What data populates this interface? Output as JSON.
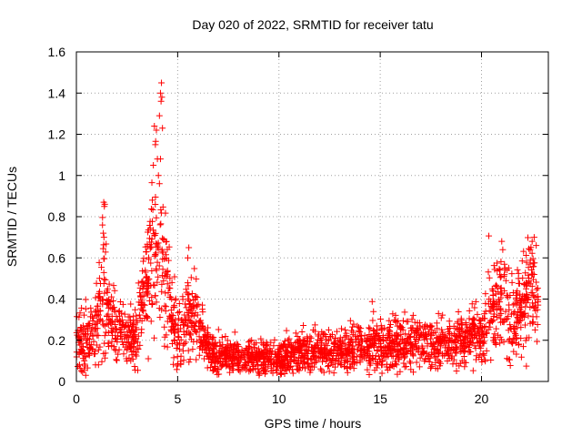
{
  "chart_data": {
    "type": "scatter",
    "title": "Day 020 of 2022, SRMTID for receiver tatu",
    "xlabel": "GPS time / hours",
    "ylabel": "SRMTID / TECUs",
    "xlim": [
      0,
      23.3
    ],
    "ylim": [
      0,
      1.6
    ],
    "xticks": [
      0,
      5,
      10,
      15,
      20
    ],
    "yticks": [
      0,
      0.2,
      0.4,
      0.6,
      0.8,
      1,
      1.2,
      1.4,
      1.6
    ],
    "ytick_labels": [
      "0",
      "0.2",
      "0.4",
      "0.6",
      "0.8",
      "1",
      "1.2",
      "1.4",
      "1.6"
    ],
    "grid": true,
    "marker": "+",
    "color": "#ff0000",
    "series": [
      {
        "name": "SRMTID",
        "envelope": [
          [
            0.0,
            0.18,
            0.08
          ],
          [
            0.5,
            0.18,
            0.08
          ],
          [
            1.0,
            0.28,
            0.1
          ],
          [
            1.3,
            0.45,
            0.15
          ],
          [
            1.6,
            0.3,
            0.1
          ],
          [
            2.0,
            0.25,
            0.08
          ],
          [
            2.5,
            0.22,
            0.06
          ],
          [
            3.0,
            0.22,
            0.08
          ],
          [
            3.3,
            0.45,
            0.12
          ],
          [
            3.7,
            0.6,
            0.15
          ],
          [
            4.0,
            0.7,
            0.2
          ],
          [
            4.3,
            0.6,
            0.2
          ],
          [
            4.6,
            0.4,
            0.12
          ],
          [
            5.0,
            0.2,
            0.08
          ],
          [
            5.5,
            0.32,
            0.1
          ],
          [
            6.0,
            0.3,
            0.1
          ],
          [
            6.3,
            0.18,
            0.06
          ],
          [
            7.0,
            0.12,
            0.04
          ],
          [
            8.0,
            0.11,
            0.04
          ],
          [
            9.0,
            0.11,
            0.04
          ],
          [
            10.0,
            0.1,
            0.04
          ],
          [
            11.0,
            0.14,
            0.05
          ],
          [
            12.0,
            0.15,
            0.05
          ],
          [
            13.0,
            0.15,
            0.05
          ],
          [
            14.0,
            0.17,
            0.05
          ],
          [
            15.0,
            0.18,
            0.06
          ],
          [
            16.0,
            0.18,
            0.06
          ],
          [
            17.0,
            0.19,
            0.06
          ],
          [
            18.0,
            0.18,
            0.06
          ],
          [
            19.0,
            0.2,
            0.06
          ],
          [
            20.0,
            0.22,
            0.07
          ],
          [
            20.5,
            0.35,
            0.1
          ],
          [
            21.0,
            0.4,
            0.12
          ],
          [
            21.5,
            0.3,
            0.1
          ],
          [
            22.0,
            0.38,
            0.12
          ],
          [
            22.5,
            0.45,
            0.12
          ],
          [
            22.8,
            0.4,
            0.1
          ]
        ],
        "extremes": [
          [
            1.35,
            0.87
          ],
          [
            1.4,
            0.86
          ],
          [
            1.38,
            0.85
          ],
          [
            1.33,
            0.72
          ],
          [
            1.36,
            0.7
          ],
          [
            4.2,
            1.45
          ],
          [
            4.15,
            1.4
          ],
          [
            4.22,
            1.38
          ],
          [
            4.18,
            1.36
          ],
          [
            4.1,
            1.29
          ],
          [
            3.85,
            1.24
          ],
          [
            3.95,
            1.22
          ],
          [
            4.25,
            1.23
          ],
          [
            3.9,
            1.15
          ],
          [
            4.0,
            1.08
          ],
          [
            4.15,
            1.08
          ],
          [
            3.8,
            1.05
          ],
          [
            4.05,
            1.0
          ],
          [
            4.1,
            0.96
          ],
          [
            3.75,
            0.88
          ],
          [
            5.55,
            0.65
          ],
          [
            5.5,
            0.6
          ],
          [
            21.0,
            0.68
          ],
          [
            21.05,
            0.64
          ],
          [
            22.6,
            0.7
          ],
          [
            22.5,
            0.68
          ],
          [
            22.7,
            0.66
          ],
          [
            22.4,
            0.64
          ]
        ],
        "samples_per_hour": 110
      }
    ]
  }
}
